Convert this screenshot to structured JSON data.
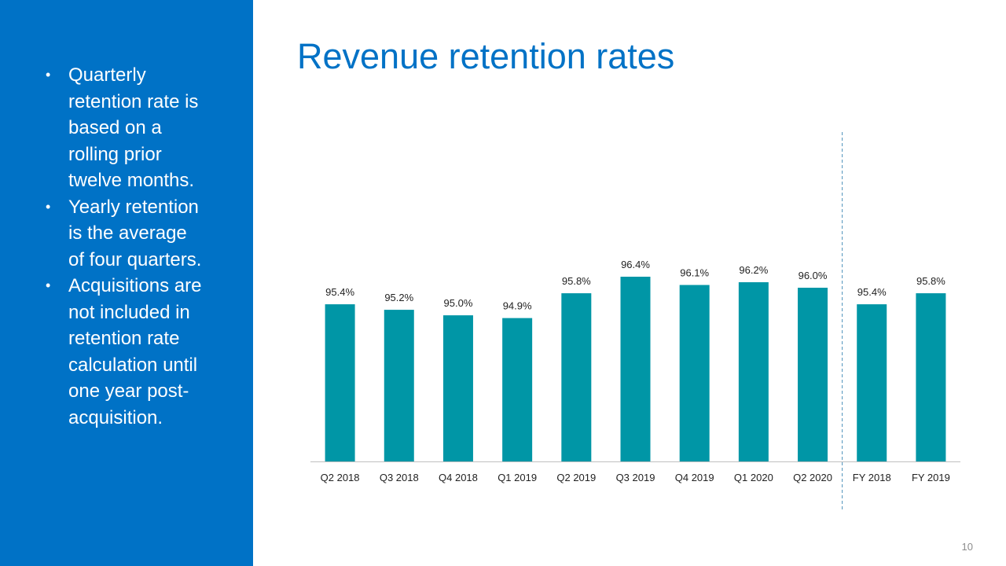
{
  "sidebar": {
    "bullets": [
      "Quarterly retention rate is based on a rolling prior twelve months.",
      "Yearly retention is the average of four quarters.",
      "Acquisitions are not included in retention rate calculation until one year post-acquisition."
    ],
    "bullet_symbol": "•"
  },
  "title": "Revenue retention rates",
  "page_number": "10",
  "colors": {
    "sidebar": "#0072c6",
    "title": "#0072c6",
    "bar": "#0096a6",
    "divider": "#4a90b8"
  },
  "chart_data": {
    "type": "bar",
    "categories": [
      "Q2 2018",
      "Q3 2018",
      "Q4 2018",
      "Q1 2019",
      "Q2 2019",
      "Q3 2019",
      "Q4 2019",
      "Q1 2020",
      "Q2 2020",
      "FY 2018",
      "FY 2019"
    ],
    "values": [
      95.4,
      95.2,
      95.0,
      94.9,
      95.8,
      96.4,
      96.1,
      96.2,
      96.0,
      95.4,
      95.8
    ],
    "data_labels": [
      "95.4%",
      "95.2%",
      "95.0%",
      "94.9%",
      "95.8%",
      "96.4%",
      "96.1%",
      "96.2%",
      "96.0%",
      "95.4%",
      "95.8%"
    ],
    "ylim": [
      89.7,
      96.4
    ],
    "grid": false,
    "legend": "none",
    "divider_between": [
      "Q2 2020",
      "FY 2018"
    ],
    "divider_style": "dashed"
  }
}
